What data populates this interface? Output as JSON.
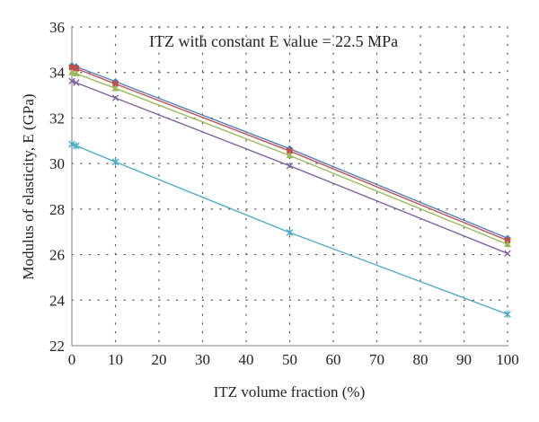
{
  "chart_data": {
    "type": "line",
    "annotation": "ITZ with constant E value = 22.5 MPa",
    "xlabel": "ITZ volume fraction (%)",
    "ylabel": "Modulus of elasticity, E (GPa)",
    "xlim": [
      0,
      100
    ],
    "ylim": [
      22,
      36
    ],
    "xticks": [
      0,
      10,
      20,
      30,
      40,
      50,
      60,
      70,
      80,
      90,
      100
    ],
    "yticks": [
      22,
      24,
      26,
      28,
      30,
      32,
      34,
      36
    ],
    "grid": "dotted",
    "x": [
      0,
      1,
      10,
      50,
      100
    ],
    "series": [
      {
        "color": "#4f81bd",
        "marker": "diamond",
        "values": [
          34.3,
          34.25,
          33.6,
          30.65,
          26.72
        ]
      },
      {
        "color": "#c0504d",
        "marker": "square",
        "values": [
          34.22,
          34.17,
          33.5,
          30.55,
          26.62
        ]
      },
      {
        "color": "#9bbb59",
        "marker": "triangle",
        "values": [
          34.0,
          33.95,
          33.3,
          30.35,
          26.45
        ]
      },
      {
        "color": "#8064a2",
        "marker": "x",
        "values": [
          33.62,
          33.55,
          32.88,
          29.9,
          26.05
        ]
      },
      {
        "color": "#4bacc6",
        "marker": "star",
        "values": [
          30.85,
          30.78,
          30.07,
          26.97,
          23.38
        ]
      }
    ]
  }
}
